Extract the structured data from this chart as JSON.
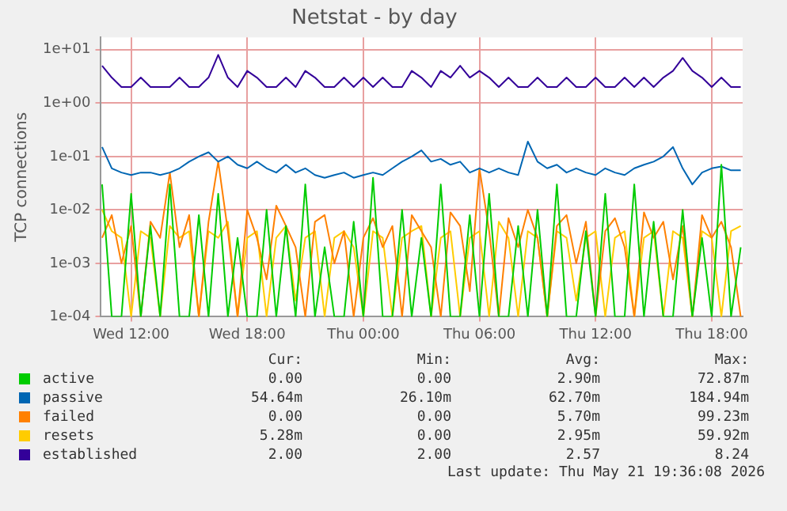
{
  "chart_data": {
    "type": "line",
    "title": "Netstat - by day",
    "ylabel": "TCP connections",
    "log": "y",
    "grid": true,
    "legend": "bottom",
    "marker": "none",
    "line_style": "solid",
    "x": [
      "2026-05-20T10:30",
      "2026-05-20T11:00",
      "2026-05-20T11:30",
      "2026-05-20T12:00",
      "2026-05-20T12:30",
      "2026-05-20T13:00",
      "2026-05-20T13:30",
      "2026-05-20T14:00",
      "2026-05-20T14:30",
      "2026-05-20T15:00",
      "2026-05-20T15:30",
      "2026-05-20T16:00",
      "2026-05-20T16:30",
      "2026-05-20T17:00",
      "2026-05-20T17:30",
      "2026-05-20T18:00",
      "2026-05-20T18:30",
      "2026-05-20T19:00",
      "2026-05-20T19:30",
      "2026-05-20T20:00",
      "2026-05-20T20:30",
      "2026-05-20T21:00",
      "2026-05-20T21:30",
      "2026-05-20T22:00",
      "2026-05-20T22:30",
      "2026-05-20T23:00",
      "2026-05-20T23:30",
      "2026-05-21T00:00",
      "2026-05-21T00:30",
      "2026-05-21T01:00",
      "2026-05-21T01:30",
      "2026-05-21T02:00",
      "2026-05-21T02:30",
      "2026-05-21T03:00",
      "2026-05-21T03:30",
      "2026-05-21T04:00",
      "2026-05-21T04:30",
      "2026-05-21T05:00",
      "2026-05-21T05:30",
      "2026-05-21T06:00",
      "2026-05-21T06:30",
      "2026-05-21T07:00",
      "2026-05-21T07:30",
      "2026-05-21T08:00",
      "2026-05-21T08:30",
      "2026-05-21T09:00",
      "2026-05-21T09:30",
      "2026-05-21T10:00",
      "2026-05-21T10:30",
      "2026-05-21T11:00",
      "2026-05-21T11:30",
      "2026-05-21T12:00",
      "2026-05-21T12:30",
      "2026-05-21T13:00",
      "2026-05-21T13:30",
      "2026-05-21T14:00",
      "2026-05-21T14:30",
      "2026-05-21T15:00",
      "2026-05-21T15:30",
      "2026-05-21T16:00",
      "2026-05-21T16:30",
      "2026-05-21T17:00",
      "2026-05-21T17:30",
      "2026-05-21T18:00",
      "2026-05-21T18:30",
      "2026-05-21T19:00",
      "2026-05-21T19:30"
    ],
    "xlim": [
      "2026-05-20T10:24",
      "2026-05-21T19:36"
    ],
    "xticks": [
      {
        "value": "2026-05-20T12:00",
        "label": "Wed 12:00"
      },
      {
        "value": "2026-05-20T18:00",
        "label": "Wed 18:00"
      },
      {
        "value": "2026-05-21T00:00",
        "label": "Thu 00:00"
      },
      {
        "value": "2026-05-21T06:00",
        "label": "Thu 06:00"
      },
      {
        "value": "2026-05-21T12:00",
        "label": "Thu 12:00"
      },
      {
        "value": "2026-05-21T18:00",
        "label": "Thu 18:00"
      }
    ],
    "ylim": [
      0.0001,
      17
    ],
    "yticks": [
      {
        "value": 0.0001,
        "label": "1e-04"
      },
      {
        "value": 0.001,
        "label": "1e-03"
      },
      {
        "value": 0.01,
        "label": "1e-02"
      },
      {
        "value": 0.1,
        "label": "1e-01"
      },
      {
        "value": 1,
        "label": "1e+00"
      },
      {
        "value": 10,
        "label": "1e+01"
      }
    ],
    "series": [
      {
        "name": "active",
        "color": "#00cc00",
        "values": [
          0.03,
          0.0001,
          0.0001,
          0.02,
          0.0001,
          0.005,
          0.0001,
          0.03,
          0.0001,
          0.0001,
          0.008,
          0.0001,
          0.02,
          0.0001,
          0.003,
          0.0001,
          0.0001,
          0.01,
          0.0001,
          0.005,
          0.0001,
          0.03,
          0.0001,
          0.002,
          0.0001,
          0.0001,
          0.006,
          0.0001,
          0.04,
          0.0001,
          0.0001,
          0.01,
          0.0001,
          0.003,
          0.0001,
          0.03,
          0.0001,
          0.0001,
          0.008,
          0.0001,
          0.02,
          0.0001,
          0.0001,
          0.005,
          0.0001,
          0.01,
          0.0001,
          0.03,
          0.0001,
          0.0001,
          0.004,
          0.0001,
          0.02,
          0.0001,
          0.0001,
          0.03,
          0.0001,
          0.006,
          0.0001,
          0.0001,
          0.01,
          0.0001,
          0.003,
          0.0001,
          0.07,
          0.0001,
          0.002
        ]
      },
      {
        "name": "passive",
        "color": "#0066b3",
        "values": [
          0.15,
          0.06,
          0.05,
          0.045,
          0.05,
          0.05,
          0.045,
          0.05,
          0.06,
          0.08,
          0.1,
          0.12,
          0.08,
          0.1,
          0.07,
          0.06,
          0.08,
          0.06,
          0.05,
          0.07,
          0.05,
          0.06,
          0.045,
          0.04,
          0.045,
          0.05,
          0.04,
          0.045,
          0.05,
          0.045,
          0.06,
          0.08,
          0.1,
          0.13,
          0.08,
          0.09,
          0.07,
          0.08,
          0.05,
          0.06,
          0.05,
          0.06,
          0.05,
          0.045,
          0.19,
          0.08,
          0.06,
          0.07,
          0.05,
          0.06,
          0.05,
          0.045,
          0.06,
          0.05,
          0.045,
          0.06,
          0.07,
          0.08,
          0.1,
          0.15,
          0.06,
          0.03,
          0.05,
          0.06,
          0.065,
          0.055,
          0.055
        ]
      },
      {
        "name": "failed",
        "color": "#ff8000",
        "values": [
          0.003,
          0.008,
          0.001,
          0.005,
          0.0001,
          0.006,
          0.003,
          0.05,
          0.002,
          0.008,
          0.0001,
          0.006,
          0.08,
          0.004,
          0.0001,
          0.01,
          0.003,
          0.0005,
          0.012,
          0.005,
          0.002,
          0.0001,
          0.006,
          0.008,
          0.001,
          0.004,
          0.0001,
          0.003,
          0.007,
          0.002,
          0.005,
          0.0001,
          0.008,
          0.004,
          0.002,
          0.0001,
          0.009,
          0.005,
          0.0003,
          0.06,
          0.004,
          0.0001,
          0.007,
          0.002,
          0.01,
          0.003,
          0.0001,
          0.005,
          0.008,
          0.001,
          0.006,
          0.0001,
          0.004,
          0.007,
          0.002,
          0.0001,
          0.009,
          0.003,
          0.006,
          0.0005,
          0.005,
          0.0001,
          0.008,
          0.003,
          0.006,
          0.002,
          0.0001
        ]
      },
      {
        "name": "resets",
        "color": "#ffcc00",
        "values": [
          0.01,
          0.004,
          0.003,
          0.0001,
          0.004,
          0.003,
          0.0001,
          0.005,
          0.003,
          0.004,
          0.0001,
          0.004,
          0.003,
          0.006,
          0.0001,
          0.003,
          0.004,
          0.0001,
          0.003,
          0.005,
          0.0002,
          0.003,
          0.004,
          0.0001,
          0.003,
          0.004,
          0.002,
          0.0001,
          0.004,
          0.003,
          0.0001,
          0.003,
          0.004,
          0.005,
          0.0001,
          0.003,
          0.004,
          0.0001,
          0.003,
          0.004,
          0.0001,
          0.006,
          0.003,
          0.0001,
          0.004,
          0.003,
          0.0001,
          0.004,
          0.003,
          0.0002,
          0.003,
          0.004,
          0.0001,
          0.003,
          0.004,
          0.0001,
          0.003,
          0.004,
          0.0001,
          0.004,
          0.003,
          0.0001,
          0.004,
          0.003,
          0.0001,
          0.004,
          0.005
        ]
      },
      {
        "name": "established",
        "color": "#330099",
        "values": [
          5,
          3,
          2,
          2,
          3,
          2,
          2,
          2,
          3,
          2,
          2,
          3,
          8,
          3,
          2,
          4,
          3,
          2,
          2,
          3,
          2,
          4,
          3,
          2,
          2,
          3,
          2,
          3,
          2,
          3,
          2,
          2,
          4,
          3,
          2,
          4,
          3,
          5,
          3,
          4,
          3,
          2,
          3,
          2,
          2,
          3,
          2,
          2,
          3,
          2,
          2,
          3,
          2,
          2,
          3,
          2,
          3,
          2,
          3,
          4,
          7,
          4,
          3,
          2,
          3,
          2,
          2
        ]
      }
    ],
    "annotations": [
      "Cur:",
      "Min:",
      "Avg:",
      "Max:",
      "0.00",
      "0.00",
      "2.90m",
      "72.87m",
      "54.64m",
      "26.10m",
      "62.70m",
      "184.94m",
      "0.00",
      "0.00",
      "5.70m",
      "99.23m",
      "5.28m",
      "0.00",
      "2.95m",
      "59.92m",
      "2.00",
      "2.00",
      "2.57",
      "8.24",
      "Last update: Thu May 21 19:36:08 2026"
    ]
  }
}
